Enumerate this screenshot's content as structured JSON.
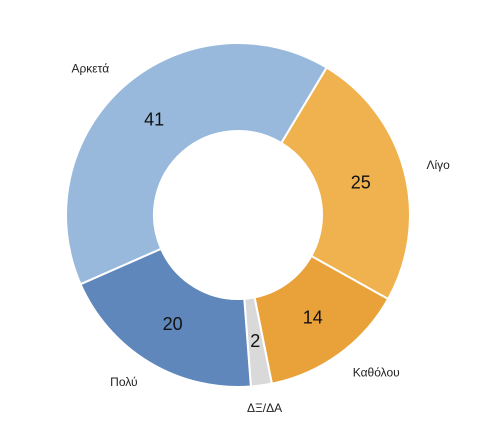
{
  "chart_data": {
    "type": "pie",
    "variant": "donut",
    "title": "",
    "slices": [
      {
        "label": "Λίγο",
        "value": 25,
        "color": "#f0b24f"
      },
      {
        "label": "Καθόλου",
        "value": 14,
        "color": "#e9a23a"
      },
      {
        "label": "ΔΞ/ΔΑ",
        "value": 2,
        "color": "#d9d9d9"
      },
      {
        "label": "Πολύ",
        "value": 20,
        "color": "#5f87bc"
      },
      {
        "label": "Αρκετά",
        "value": 41,
        "color": "#98b9dc"
      }
    ],
    "data_labels_shown": true,
    "legend": "none"
  }
}
